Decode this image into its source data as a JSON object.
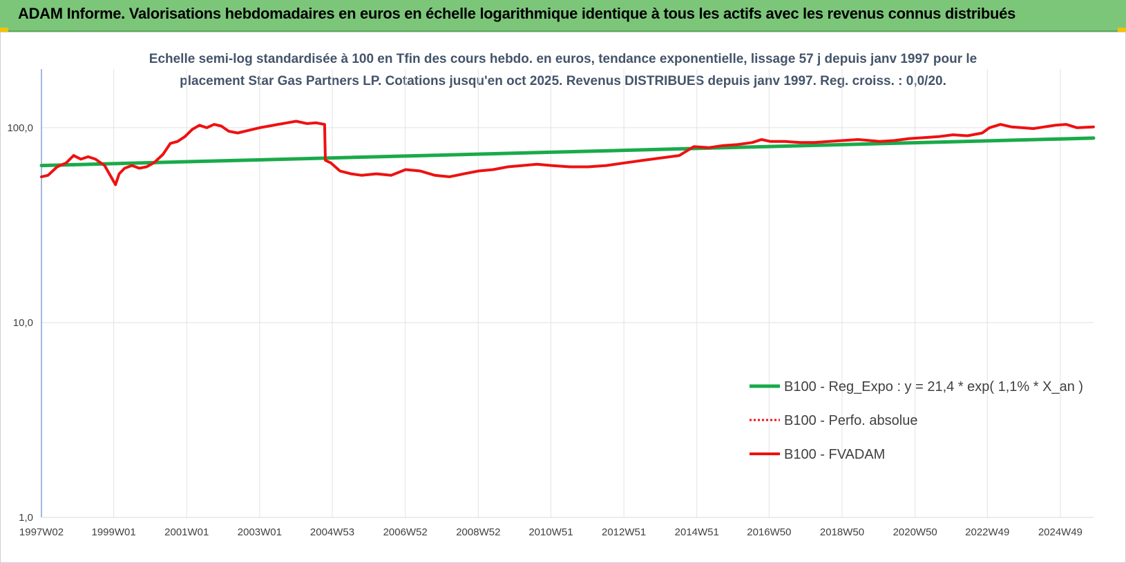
{
  "header": {
    "title": "ADAM Informe. Valorisations hebdomadaires en euros en échelle logarithmique identique à tous les actifs avec les revenus connus distribués"
  },
  "colors": {
    "header_bg": "#7cc67a",
    "accent_corner": "#f2c200",
    "regression": "#1aaa4a",
    "fvadam": "#ee1111",
    "perfo": "#ee1111",
    "subtitle": "#44546a"
  },
  "chart_data": {
    "type": "line",
    "subtitle_line1": "Echelle semi-log standardisée à 100 en Tfin des cours hebdo. en euros, tendance exponentielle, lissage 57 j depuis janv 1997 pour le",
    "subtitle_line2": "placement Star Gas Partners LP. Cotations jusqu'en oct 2025. Revenus DISTRIBUES depuis janv 1997. Reg. croiss. : 0,0/20.",
    "y_scale": "log",
    "ylim": [
      1,
      200
    ],
    "xlim": [
      1997.02,
      2025.85
    ],
    "grid": true,
    "legend_position": "bottom-right",
    "y_ticks": [
      {
        "value": 1,
        "label": "1,0"
      },
      {
        "value": 10,
        "label": "10,0"
      },
      {
        "value": 100,
        "label": "100,0"
      }
    ],
    "x_ticks": [
      {
        "value": 1997.02,
        "label": "1997W02"
      },
      {
        "value": 1999.0,
        "label": "1999W01"
      },
      {
        "value": 2001.0,
        "label": "2001W01"
      },
      {
        "value": 2003.0,
        "label": "2003W01"
      },
      {
        "value": 2004.99,
        "label": "2004W53"
      },
      {
        "value": 2006.99,
        "label": "2006W52"
      },
      {
        "value": 2008.99,
        "label": "2008W52"
      },
      {
        "value": 2010.98,
        "label": "2010W51"
      },
      {
        "value": 2012.98,
        "label": "2012W51"
      },
      {
        "value": 2014.98,
        "label": "2014W51"
      },
      {
        "value": 2016.96,
        "label": "2016W50"
      },
      {
        "value": 2018.96,
        "label": "2018W50"
      },
      {
        "value": 2020.96,
        "label": "2020W50"
      },
      {
        "value": 2022.94,
        "label": "2022W49"
      },
      {
        "value": 2024.94,
        "label": "2024W49"
      }
    ],
    "series": [
      {
        "name": "B100 - Reg_Expo : y = 21,4 * exp( 1,1% *  X_an )",
        "style": "solid-green",
        "x": [
          1997.02,
          2025.85
        ],
        "y": [
          64.0,
          88.5
        ]
      },
      {
        "name": "B100 - Perfo. absolue",
        "style": "dotted-red",
        "x": [],
        "y": []
      },
      {
        "name": "B100 - FVADAM",
        "style": "solid-red",
        "x": [
          1997.02,
          1997.2,
          1997.45,
          1997.7,
          1997.9,
          1998.1,
          1998.3,
          1998.5,
          1998.75,
          1998.95,
          1999.05,
          1999.15,
          1999.3,
          1999.5,
          1999.7,
          1999.9,
          2000.1,
          2000.35,
          2000.55,
          2000.75,
          2000.95,
          2001.15,
          2001.35,
          2001.55,
          2001.75,
          2001.95,
          2002.15,
          2002.4,
          2002.6,
          2002.8,
          2003.0,
          2003.25,
          2003.5,
          2003.75,
          2004.0,
          2004.3,
          2004.55,
          2004.78,
          2004.8,
          2004.95,
          2005.2,
          2005.5,
          2005.8,
          2006.2,
          2006.6,
          2007.0,
          2007.4,
          2007.8,
          2008.2,
          2008.6,
          2009.0,
          2009.4,
          2009.8,
          2010.2,
          2010.6,
          2011.0,
          2011.5,
          2012.0,
          2012.5,
          2013.0,
          2013.5,
          2014.0,
          2014.5,
          2014.9,
          2015.3,
          2015.7,
          2016.1,
          2016.5,
          2016.75,
          2017.0,
          2017.4,
          2017.8,
          2018.2,
          2018.6,
          2019.0,
          2019.4,
          2019.7,
          2020.0,
          2020.4,
          2020.8,
          2021.2,
          2021.6,
          2022.0,
          2022.4,
          2022.8,
          2023.0,
          2023.3,
          2023.6,
          2023.9,
          2024.2,
          2024.5,
          2024.8,
          2025.1,
          2025.4,
          2025.85
        ],
        "y": [
          56,
          57,
          63,
          66,
          72,
          69,
          71,
          69,
          64,
          55,
          51,
          58,
          62,
          64,
          62,
          63,
          66,
          73,
          83,
          85,
          90,
          98,
          103,
          100,
          104,
          102,
          96,
          94,
          96,
          98,
          100,
          102,
          104,
          106,
          108,
          105,
          106,
          104,
          68,
          66,
          60,
          58,
          57,
          58,
          57,
          61,
          60,
          57,
          56,
          58,
          60,
          61,
          63,
          64,
          65,
          64,
          63,
          63,
          64,
          66,
          68,
          70,
          72,
          80,
          79,
          81,
          82,
          84,
          87,
          85,
          85,
          84,
          84,
          85,
          86,
          87,
          86,
          85,
          86,
          88,
          89,
          90,
          92,
          91,
          94,
          100,
          104,
          101,
          100,
          99,
          101,
          103,
          104,
          100,
          101
        ]
      }
    ]
  }
}
